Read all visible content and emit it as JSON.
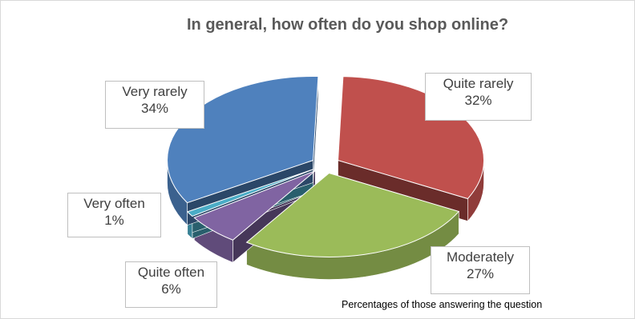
{
  "chart_data": {
    "type": "pie",
    "style": "3d-exploded",
    "title": "In general, how often do you shop online?",
    "slices": [
      {
        "label": "Quite rarely",
        "value": 32,
        "value_label": "32%",
        "color": "#c0504d"
      },
      {
        "label": "Moderately",
        "value": 27,
        "value_label": "27%",
        "color": "#9bbb59"
      },
      {
        "label": "Quite often",
        "value": 6,
        "value_label": "6%",
        "color": "#8064a2"
      },
      {
        "label": "Very often",
        "value": 1,
        "value_label": "1%",
        "color": "#4bacc6"
      },
      {
        "label": "Very rarely",
        "value": 34,
        "value_label": "34%",
        "color": "#4f81bd"
      }
    ],
    "footnote": "Percentages of those answering the question"
  }
}
